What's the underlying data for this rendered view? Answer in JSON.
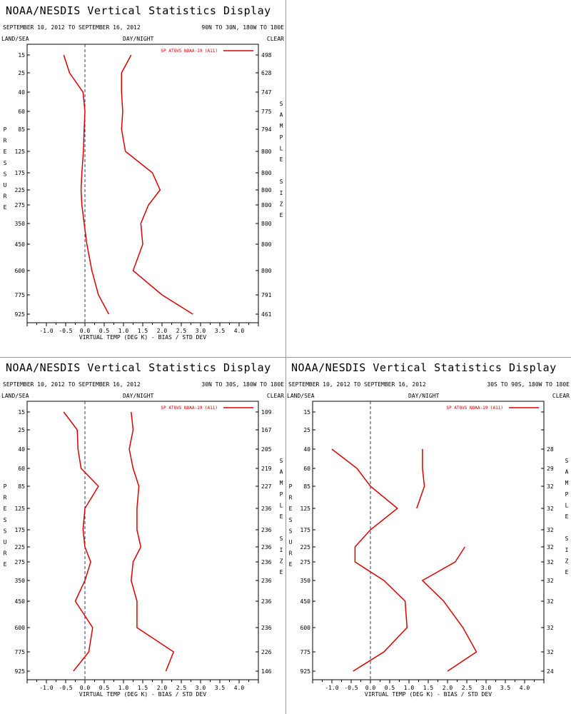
{
  "chart_data": [
    {
      "type": "line",
      "title": "NOAA/NESDIS Vertical Statistics Display",
      "date_range": "SEPTEMBER 10, 2012 TO SEPTEMBER 16, 2012",
      "region": "90N TO 30N, 180W TO 180E",
      "surface": "LAND/SEA",
      "daynight": "DAY/NIGHT",
      "sky": "CLEAR",
      "legend": "SP ATOVS NOAA-19 (A11)",
      "xlabel": "VIRTUAL TEMP (DEG K) - BIAS / STD DEV",
      "ylabel": "PRESSURE",
      "y2label": "SAMPLE SIZE",
      "xlim": [
        -1.5,
        4.5
      ],
      "xticks": [
        "-1.0",
        "-0.5",
        "0.0",
        "0.5",
        "1.0",
        "1.5",
        "2.0",
        "2.5",
        "3.0",
        "3.5",
        "4.0"
      ],
      "pressure_levels": [
        "15",
        "25",
        "40",
        "60",
        "85",
        "125",
        "175",
        "225",
        "275",
        "350",
        "450",
        "600",
        "775",
        "925"
      ],
      "sample_size": [
        "498",
        "628",
        "747",
        "775",
        "794",
        "800",
        "800",
        "800",
        "800",
        "800",
        "800",
        "800",
        "791",
        "461"
      ],
      "series": [
        {
          "values": [
            -0.55,
            -0.4,
            -0.05,
            0.0,
            -0.02,
            -0.04,
            -0.08,
            -0.1,
            -0.08,
            -0.02,
            0.05,
            0.18,
            0.35,
            0.62
          ]
        },
        {
          "values": [
            1.2,
            0.95,
            0.95,
            0.98,
            0.95,
            1.05,
            1.75,
            1.95,
            1.65,
            1.45,
            1.5,
            1.25,
            2.0,
            2.8
          ]
        }
      ]
    },
    {
      "type": "line",
      "title": "NOAA/NESDIS Vertical Statistics Display",
      "date_range": "SEPTEMBER 10, 2012 TO SEPTEMBER 16, 2012",
      "region": "30N TO 30S, 180W TO 180E",
      "surface": "LAND/SEA",
      "daynight": "DAY/NIGHT",
      "sky": "CLEAR",
      "legend": "SP ATOVS NOAA-19 (A11)",
      "xlabel": "VIRTUAL TEMP (DEG K) - BIAS / STD DEV",
      "ylabel": "PRESSURE",
      "y2label": "SAMPLE SIZE",
      "xlim": [
        -1.5,
        4.5
      ],
      "xticks": [
        "-1.0",
        "-0.5",
        "0.0",
        "0.5",
        "1.0",
        "1.5",
        "2.0",
        "2.5",
        "3.0",
        "3.5",
        "4.0"
      ],
      "pressure_levels": [
        "15",
        "25",
        "40",
        "60",
        "85",
        "125",
        "175",
        "225",
        "275",
        "350",
        "450",
        "600",
        "775",
        "925"
      ],
      "sample_size": [
        "109",
        "167",
        "205",
        "219",
        "227",
        "236",
        "236",
        "236",
        "236",
        "236",
        "236",
        "236",
        "226",
        "146"
      ],
      "series": [
        {
          "values": [
            -0.55,
            -0.2,
            -0.18,
            -0.1,
            0.35,
            0.0,
            -0.05,
            0.0,
            0.15,
            0.0,
            -0.25,
            0.2,
            0.1,
            -0.3
          ]
        },
        {
          "values": [
            1.2,
            1.25,
            1.15,
            1.25,
            1.4,
            1.35,
            1.35,
            1.45,
            1.25,
            1.2,
            1.35,
            1.35,
            2.3,
            2.1
          ]
        }
      ]
    },
    {
      "type": "line",
      "title": "NOAA/NESDIS Vertical Statistics Display",
      "date_range": "SEPTEMBER 10, 2012 TO SEPTEMBER 16, 2012",
      "region": "30S TO 90S, 180W TO 180E",
      "surface": "LAND/SEA",
      "daynight": "DAY/NIGHT",
      "sky": "CLEAR",
      "legend": "SP ATOVS NOAA-19 (A11)",
      "xlabel": "VIRTUAL TEMP (DEG K) - BIAS / STD DEV",
      "ylabel": "PRESSURE",
      "y2label": "SAMPLE SIZE",
      "xlim": [
        -1.5,
        4.5
      ],
      "xticks": [
        "-1.0",
        "-0.5",
        "0.0",
        "0.5",
        "1.0",
        "1.5",
        "2.0",
        "2.5",
        "3.0",
        "3.5",
        "4.0"
      ],
      "pressure_levels": [
        "15",
        "25",
        "40",
        "60",
        "85",
        "125",
        "175",
        "225",
        "275",
        "350",
        "450",
        "600",
        "775",
        "925"
      ],
      "sample_size": [
        "",
        "",
        "28",
        "29",
        "32",
        "32",
        "32",
        "32",
        "32",
        "32",
        "32",
        "32",
        "32",
        "24"
      ],
      "series": [
        {
          "values": [
            null,
            null,
            -1.0,
            -0.35,
            0.0,
            0.7,
            0.0,
            -0.4,
            -0.4,
            0.35,
            0.9,
            0.95,
            0.35,
            -0.45
          ]
        },
        {
          "values": [
            null,
            null,
            1.35,
            1.35,
            1.4,
            1.2,
            null,
            2.45,
            2.2,
            1.35,
            1.9,
            2.4,
            2.75,
            2.0
          ]
        }
      ]
    }
  ],
  "colors": {
    "series": "#dd0000",
    "zero_line": "#333366",
    "axes": "#000000",
    "divider": "#999999"
  }
}
